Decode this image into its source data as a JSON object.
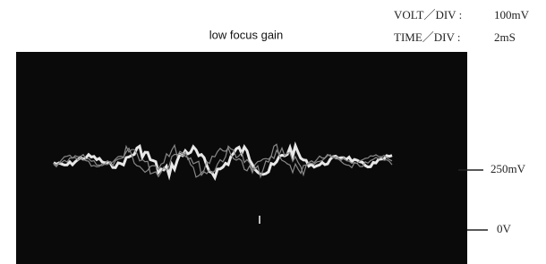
{
  "title": "low focus gain",
  "settings": [
    {
      "label": "VOLT／DIV :",
      "value": "100mV"
    },
    {
      "label": "TIME／DIV :",
      "value": "2mS"
    }
  ],
  "markers": [
    "250mV",
    "0V"
  ]
}
